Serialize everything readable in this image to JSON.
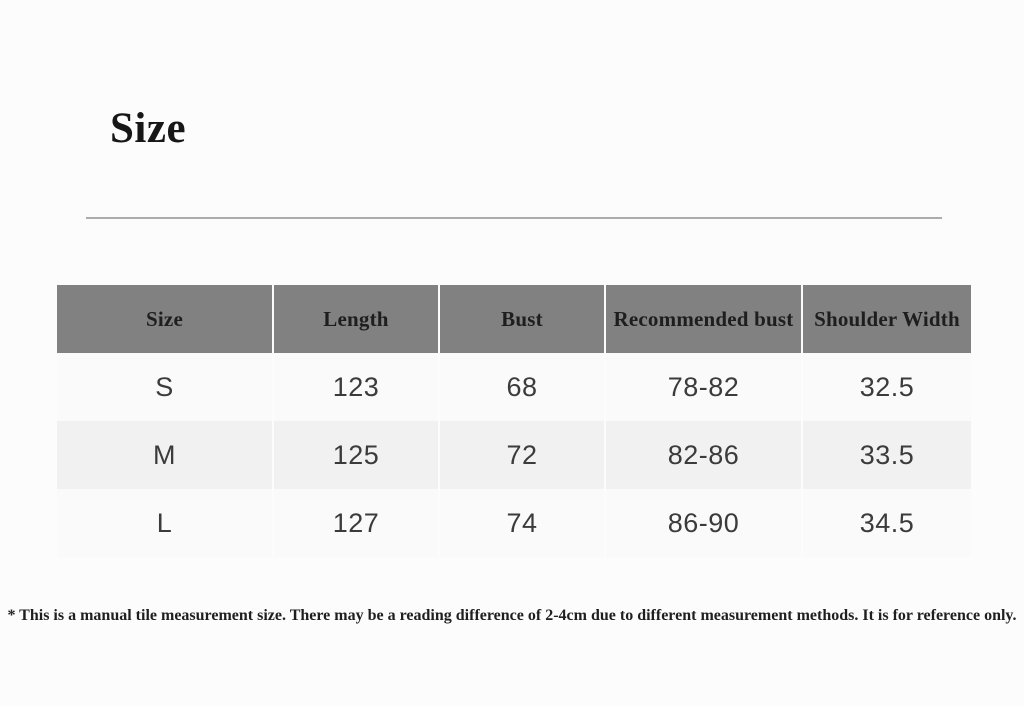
{
  "page": {
    "title": "Size",
    "footnote": "* This is a manual tile measurement size. There may be a reading difference of 2-4cm due to different measurement methods. It is for reference only."
  },
  "size_table": {
    "columns": [
      "Size",
      "Length",
      "Bust",
      "Recommended bust",
      "Shoulder Width"
    ],
    "rows": [
      [
        "S",
        "123",
        "68",
        "78-82",
        "32.5"
      ],
      [
        "M",
        "125",
        "72",
        "82-86",
        "33.5"
      ],
      [
        "L",
        "127",
        "74",
        "86-90",
        "34.5"
      ]
    ]
  },
  "colors": {
    "page_bg": "#fcfcfc",
    "header_bg": "#818181",
    "header_text": "#1e1e1e",
    "row_odd_bg": "#fafafa",
    "row_even_bg": "#f1f1f1",
    "body_text": "#3b3b3b",
    "divider": "#acacac"
  }
}
